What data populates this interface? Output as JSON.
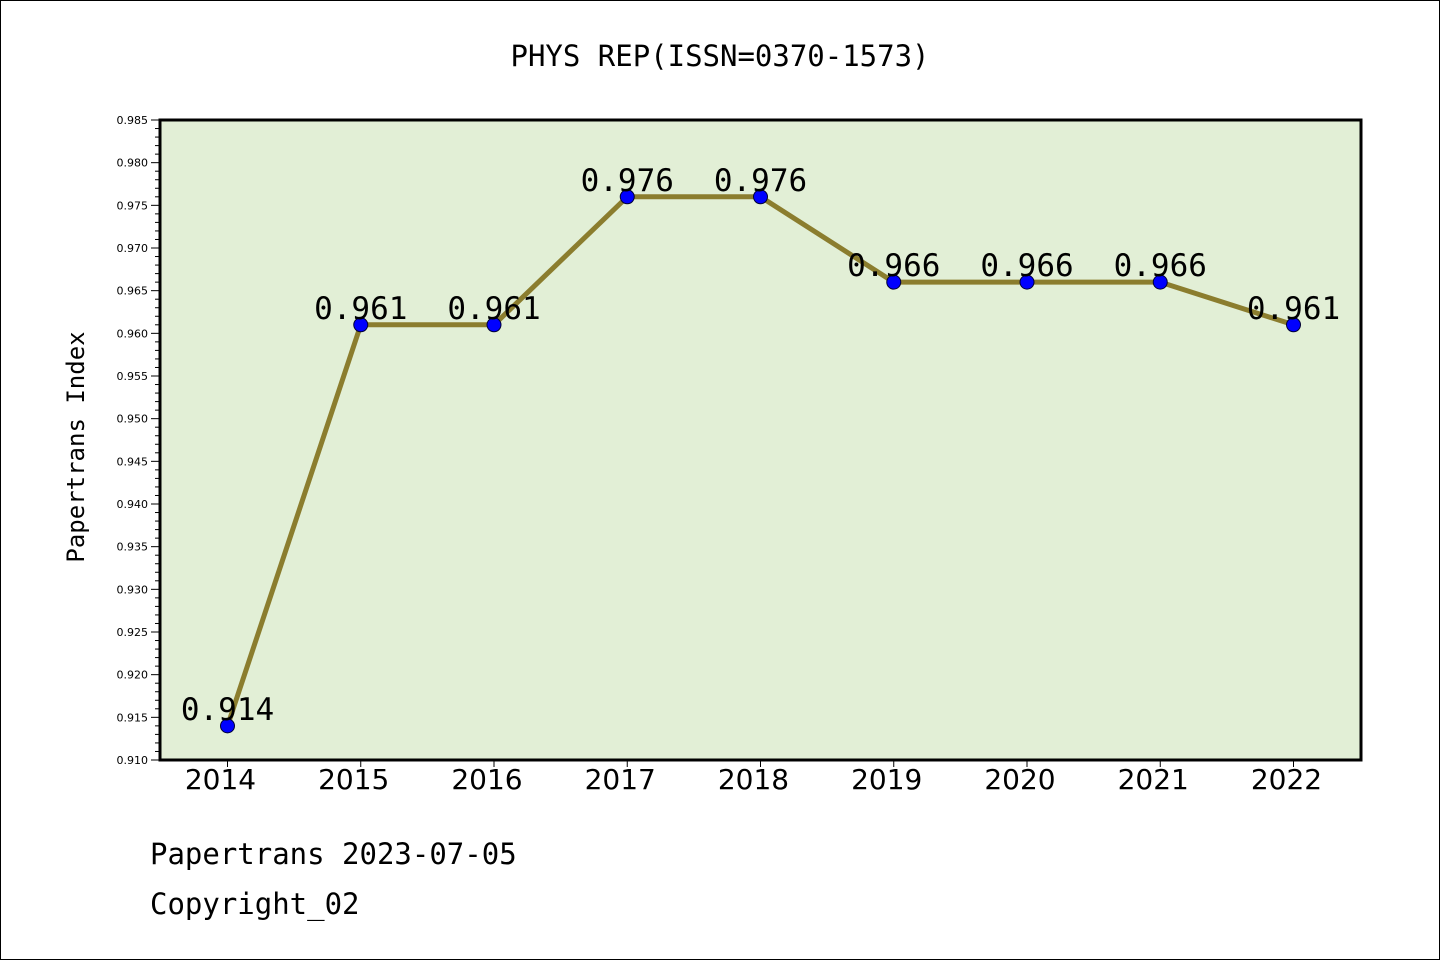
{
  "chart_data": {
    "type": "line",
    "title": "PHYS REP(ISSN=0370-1573)",
    "xlabel": "",
    "ylabel": "Papertrans Index",
    "x": [
      "2014",
      "2015",
      "2016",
      "2017",
      "2018",
      "2019",
      "2020",
      "2021",
      "2022"
    ],
    "values": [
      0.914,
      0.961,
      0.961,
      0.976,
      0.976,
      0.966,
      0.966,
      0.966,
      0.961
    ],
    "data_labels": [
      "0.914",
      "0.961",
      "0.961",
      "0.976",
      "0.976",
      "0.966",
      "0.966",
      "0.966",
      "0.961"
    ],
    "ylim": [
      0.91,
      0.985
    ],
    "yticks": [
      "0.910",
      "0.915",
      "0.920",
      "0.925",
      "0.930",
      "0.935",
      "0.940",
      "0.945",
      "0.950",
      "0.955",
      "0.960",
      "0.965",
      "0.970",
      "0.975",
      "0.980",
      "0.985"
    ],
    "grid": false,
    "legend": "none",
    "colors": {
      "plot_background": "#e2efd6",
      "line": "#8b7d2e",
      "marker": "#0000ff"
    }
  },
  "footer": {
    "line1": "Papertrans 2023-07-05",
    "line2": "Copyright_02"
  }
}
